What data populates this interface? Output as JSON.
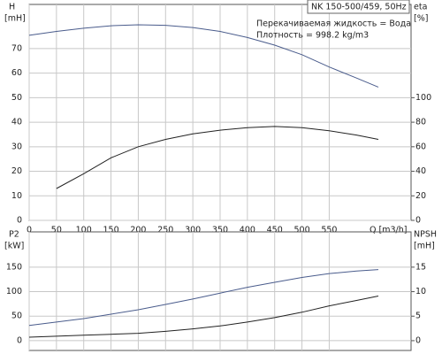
{
  "chart_data": [
    {
      "type": "line",
      "box_title": "NK 150-500/459, 50Hz",
      "annotations": [
        "Перекачиваемая жидкость = Вода",
        "Плотность = 998.2 kg/m3"
      ],
      "ylabel": "H",
      "yunit": "[mH]",
      "y2label": "eta",
      "y2unit": "[%]",
      "xlabel": "Q [m3/h]",
      "x": [
        0,
        50,
        100,
        150,
        200,
        250,
        300,
        350,
        400,
        450,
        500,
        550,
        600,
        640
      ],
      "xlim": [
        0,
        700
      ],
      "xticks": [
        0,
        50,
        100,
        150,
        200,
        250,
        300,
        350,
        400,
        450,
        500,
        550
      ],
      "ylim": [
        0,
        88
      ],
      "yticks": [
        0,
        10,
        20,
        30,
        40,
        50,
        60,
        70
      ],
      "y2lim": [
        0,
        176
      ],
      "y2ticks": [
        0,
        20,
        40,
        60,
        80,
        100
      ],
      "grid": true,
      "series": [
        {
          "name": "H",
          "color": "#4a5c8c",
          "values": [
            75.4,
            77,
            78.3,
            79.3,
            79.7,
            79.5,
            78.6,
            77,
            74.5,
            71.4,
            67.5,
            62.5,
            58,
            54.3
          ]
        },
        {
          "name": "eta",
          "color": "#222222",
          "axis": "y2",
          "values": [
            null,
            26,
            38,
            51,
            60,
            66,
            70.5,
            73.5,
            75.5,
            76.5,
            75.5,
            73,
            69.5,
            66
          ]
        }
      ]
    },
    {
      "type": "line",
      "ylabel": "P2",
      "yunit": "[kW]",
      "y2label": "NPSH",
      "y2unit": "[mH]",
      "x": [
        0,
        50,
        100,
        150,
        200,
        250,
        300,
        350,
        400,
        450,
        500,
        550,
        600,
        640
      ],
      "xlim": [
        0,
        700
      ],
      "ylim": [
        -20,
        222
      ],
      "yticks": [
        0,
        50,
        100,
        150
      ],
      "y2lim": [
        -2,
        22.2
      ],
      "y2ticks": [
        0,
        5,
        10,
        15
      ],
      "grid": true,
      "series": [
        {
          "name": "P2",
          "color": "#4a5c8c",
          "values": [
            31,
            38,
            45,
            54,
            63,
            74,
            85,
            97,
            109,
            119,
            129,
            137,
            142,
            145
          ]
        },
        {
          "name": "NPSH",
          "color": "#222222",
          "axis": "y2",
          "values": [
            0.7,
            0.9,
            1.1,
            1.3,
            1.5,
            1.9,
            2.4,
            3,
            3.8,
            4.7,
            5.8,
            7.1,
            8.2,
            9.1
          ]
        }
      ]
    }
  ]
}
